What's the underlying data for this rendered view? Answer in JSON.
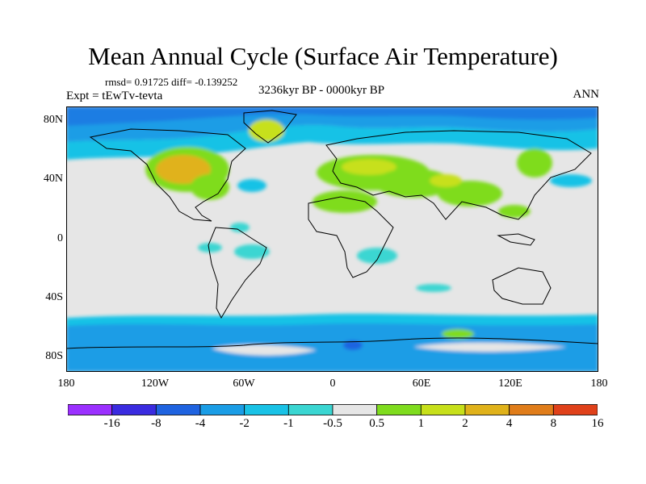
{
  "header": {
    "title": "Mean Annual Cycle (Surface Air Temperature)",
    "stats": "rmsd= 0.91725 diff= -0.139252",
    "experiment": "Expt = tEwTv-tevta",
    "period": "3236kyr BP - 0000kyr BP",
    "season": "ANN"
  },
  "axes": {
    "lat_labels": [
      "80N",
      "40N",
      "0",
      "40S",
      "80S"
    ],
    "lon_labels": [
      "180",
      "120W",
      "60W",
      "0",
      "60E",
      "120E",
      "180"
    ]
  },
  "colorbar": {
    "labels": [
      "-16",
      "-8",
      "-4",
      "-2",
      "-1",
      "-0.5",
      "0.5",
      "1",
      "2",
      "4",
      "8",
      "16"
    ],
    "colors": [
      "#9b30ff",
      "#3a2be0",
      "#1f63e0",
      "#1a9de6",
      "#19c2e6",
      "#3ad6d2",
      "#e6e6e6",
      "#7fdc1e",
      "#c7e01a",
      "#e0b21a",
      "#e07d1a",
      "#e0411a"
    ]
  },
  "chart_data": {
    "type": "heatmap",
    "title": "Mean Annual Cycle (Surface Air Temperature)",
    "subtitle": "3236kyr BP - 0000kyr BP",
    "xlabel": "",
    "ylabel": "",
    "xlim": [
      -180,
      180
    ],
    "ylim": [
      -90,
      90
    ],
    "levels": [
      -16,
      -8,
      -4,
      -2,
      -1,
      -0.5,
      0.5,
      1,
      2,
      4,
      8,
      16
    ],
    "rmsd": 0.91725,
    "diff": -0.139252
  }
}
